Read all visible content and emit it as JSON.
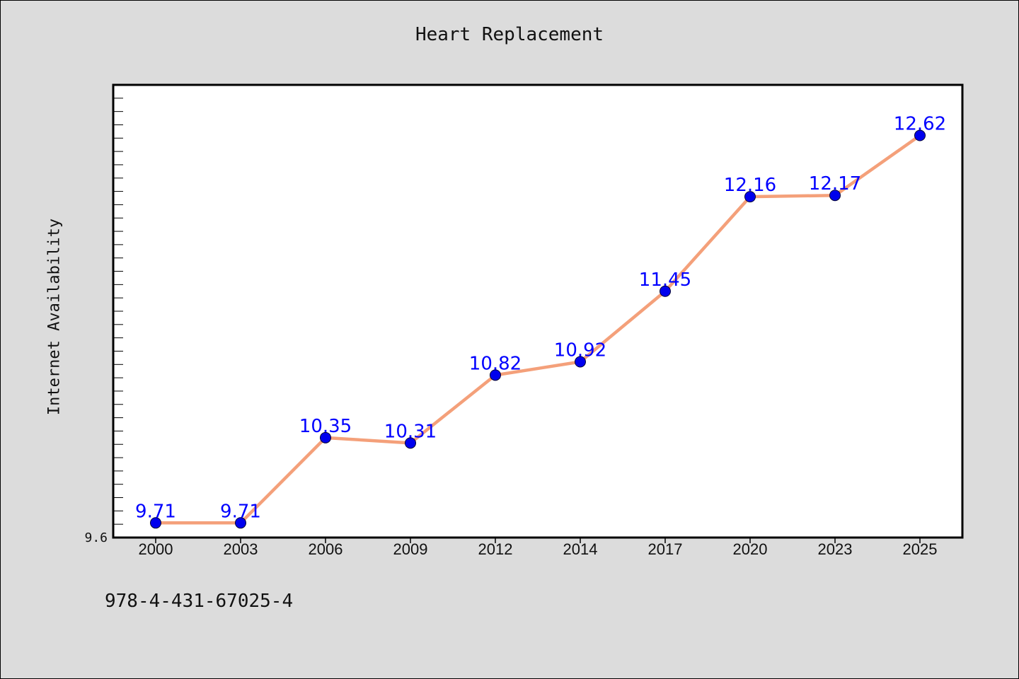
{
  "chart_data": {
    "type": "line",
    "title": "Heart Replacement",
    "xlabel": "",
    "ylabel": "Internet Availability",
    "categories": [
      "2000",
      "2003",
      "2006",
      "2009",
      "2012",
      "2014",
      "2017",
      "2020",
      "2023",
      "2025"
    ],
    "series": [
      {
        "values": [
          9.71,
          9.71,
          10.35,
          10.31,
          10.82,
          10.92,
          11.45,
          12.16,
          12.17,
          12.62
        ],
        "data_labels": [
          "9.71",
          "9.71",
          "10.35",
          "10.31",
          "10.82",
          "10.92",
          "11.45",
          "12.16",
          "12.17",
          "12.62"
        ]
      }
    ],
    "ylim": [
      9.6,
      13.0
    ],
    "yticks_labeled": [
      "9.6"
    ],
    "grid": false,
    "legend": "none",
    "colors": {
      "line": "#f4a07a",
      "marker": "#0000ee",
      "label": "#0000ff",
      "plot_bg": "#ffffff",
      "figure_bg": "#dcdcdc"
    }
  },
  "footer": {
    "isbn": "978-4-431-67025-4"
  }
}
